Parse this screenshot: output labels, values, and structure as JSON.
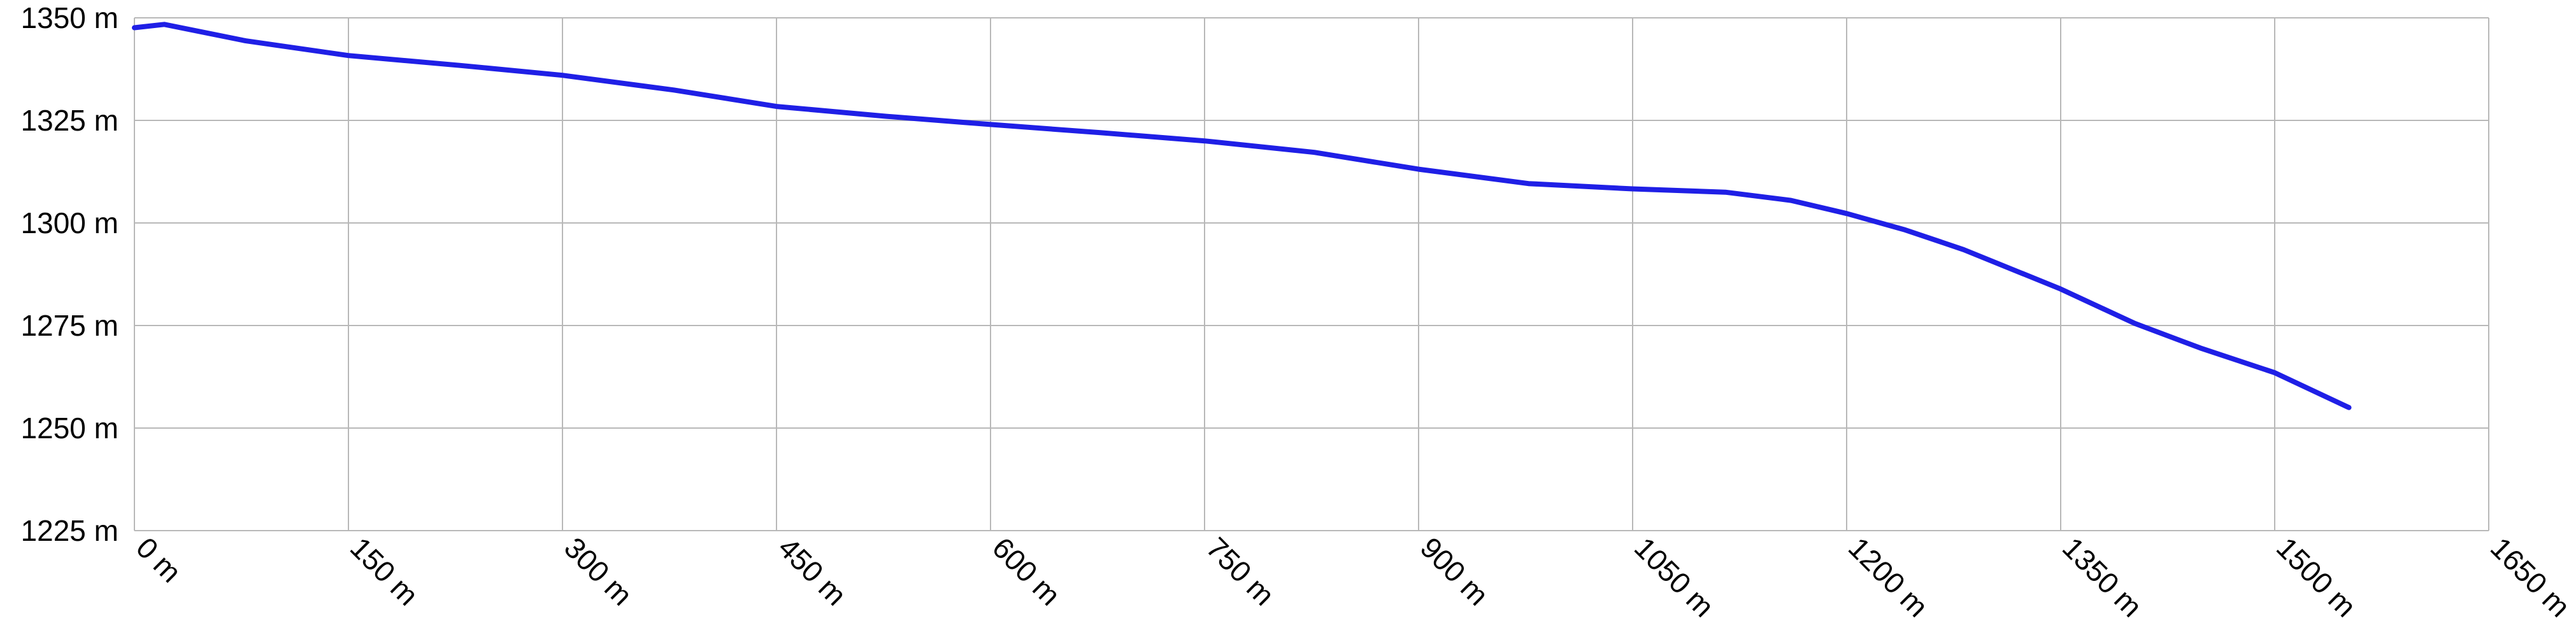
{
  "chart_data": {
    "type": "line",
    "x": [
      0,
      21,
      78,
      150,
      228,
      300,
      378,
      450,
      527,
      600,
      677,
      750,
      827,
      900,
      977,
      1050,
      1115,
      1161,
      1200,
      1241,
      1282,
      1350,
      1402,
      1448,
      1500,
      1552
    ],
    "series": [
      {
        "color": "#1f1fe6",
        "values": [
          1347.6,
          1348.4,
          1344.4,
          1340.8,
          1338.4,
          1336,
          1332.4,
          1328.4,
          1326,
          1324,
          1322,
          1320,
          1317.2,
          1313.1,
          1309.6,
          1308.3,
          1307.5,
          1305.5,
          1302.3,
          1298.3,
          1293.5,
          1283.9,
          1275.5,
          1269.5,
          1263.5,
          1255
        ]
      }
    ],
    "xlim": [
      0,
      1650
    ],
    "ylim": [
      1225,
      1350
    ],
    "xticks": [
      {
        "value": 0,
        "label": "0 m"
      },
      {
        "value": 150,
        "label": "150 m"
      },
      {
        "value": 300,
        "label": "300 m"
      },
      {
        "value": 450,
        "label": "450 m"
      },
      {
        "value": 600,
        "label": "600 m"
      },
      {
        "value": 750,
        "label": "750 m"
      },
      {
        "value": 900,
        "label": "900 m"
      },
      {
        "value": 1050,
        "label": "1050 m"
      },
      {
        "value": 1200,
        "label": "1200 m"
      },
      {
        "value": 1350,
        "label": "1350 m"
      },
      {
        "value": 1500,
        "label": "1500 m"
      },
      {
        "value": 1650,
        "label": "1650 m"
      }
    ],
    "yticks": [
      {
        "value": 1225,
        "label": "1225 m"
      },
      {
        "value": 1250,
        "label": "1250 m"
      },
      {
        "value": 1275,
        "label": "1275 m"
      },
      {
        "value": 1300,
        "label": "1300 m"
      },
      {
        "value": 1325,
        "label": "1325 m"
      },
      {
        "value": 1350,
        "label": "1350 m"
      }
    ],
    "grid": true
  }
}
